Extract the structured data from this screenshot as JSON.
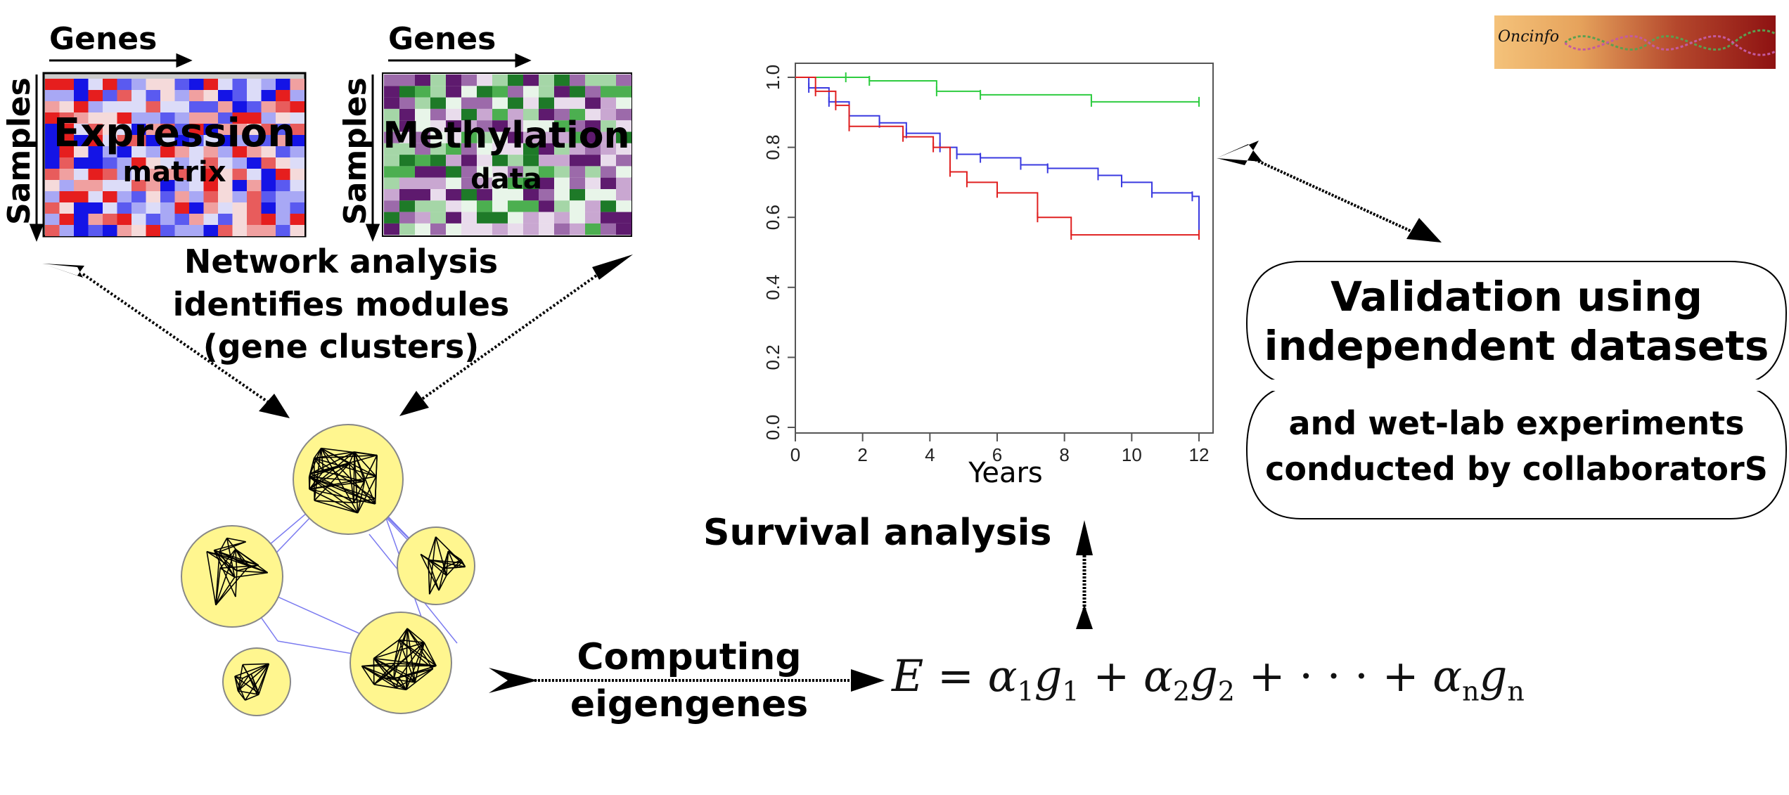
{
  "logo": {
    "text": "Oncinfo"
  },
  "expression": {
    "genes_label": "Genes",
    "samples_label": "Samples",
    "title_line1": "Expression",
    "title_line2": "matrix",
    "colors": [
      "#1414e6",
      "#5a5af0",
      "#a8a8f5",
      "#dcdcf8",
      "#f5dada",
      "#f0a0a0",
      "#e85c5c",
      "#e61e1e"
    ]
  },
  "methylation": {
    "genes_label": "Genes",
    "samples_label": "Samples",
    "title_line1": "Methylation",
    "title_line2": "data",
    "colors": [
      "#1e7a28",
      "#4caf50",
      "#a5d6a7",
      "#e8f5e9",
      "#e9dcec",
      "#c9a7d1",
      "#9c6aaa",
      "#5e1a6e"
    ]
  },
  "network_caption": [
    "Network analysis",
    "identifies modules",
    "(gene clusters)"
  ],
  "computing_caption": [
    "Computing",
    "eigengenes"
  ],
  "equation": {
    "lhs": "E",
    "eq": "=",
    "terms": [
      {
        "coef": "α",
        "coef_sub": "1",
        "var": "g",
        "var_sub": "1"
      },
      {
        "coef": "α",
        "coef_sub": "2",
        "var": "g",
        "var_sub": "2"
      },
      {
        "coef": "α",
        "coef_sub": "n",
        "var": "g",
        "var_sub": "n"
      }
    ],
    "plus": "+",
    "dots": "· · ·"
  },
  "survival_caption": "Survival analysis",
  "validation_top": [
    "Validation using",
    "independent datasets"
  ],
  "validation_bottom": [
    "and wet-lab experiments",
    "conducted by collaboratorS"
  ],
  "chart_data": {
    "type": "line",
    "xlabel": "Years",
    "ylabel": "",
    "xlim": [
      0,
      12
    ],
    "ylim": [
      0,
      1
    ],
    "x_ticks": [
      "0",
      "2",
      "4",
      "6",
      "8",
      "10",
      "12"
    ],
    "y_ticks": [
      "0.0",
      "0.2",
      "0.4",
      "0.6",
      "0.8",
      "1.0"
    ],
    "series": [
      {
        "color": "#2ecc40",
        "x": [
          0,
          1.5,
          2.2,
          4.2,
          5.5,
          8.8,
          12.0
        ],
        "y": [
          1.0,
          1.0,
          0.99,
          0.96,
          0.95,
          0.93,
          0.93
        ]
      },
      {
        "color": "#3a3ae0",
        "x": [
          0,
          0.4,
          1.0,
          1.6,
          2.5,
          3.3,
          4.3,
          4.8,
          5.5,
          6.7,
          7.5,
          9.0,
          9.7,
          10.6,
          11.8,
          12.0
        ],
        "y": [
          1.0,
          0.97,
          0.93,
          0.89,
          0.87,
          0.84,
          0.8,
          0.78,
          0.77,
          0.75,
          0.74,
          0.72,
          0.7,
          0.67,
          0.66,
          0.56
        ]
      },
      {
        "color": "#e02020",
        "x": [
          0,
          0.6,
          1.2,
          1.6,
          3.2,
          4.1,
          4.6,
          5.1,
          6.0,
          7.2,
          8.2,
          12.0
        ],
        "y": [
          1.0,
          0.96,
          0.92,
          0.86,
          0.83,
          0.8,
          0.73,
          0.7,
          0.67,
          0.6,
          0.55,
          0.55
        ]
      }
    ]
  }
}
